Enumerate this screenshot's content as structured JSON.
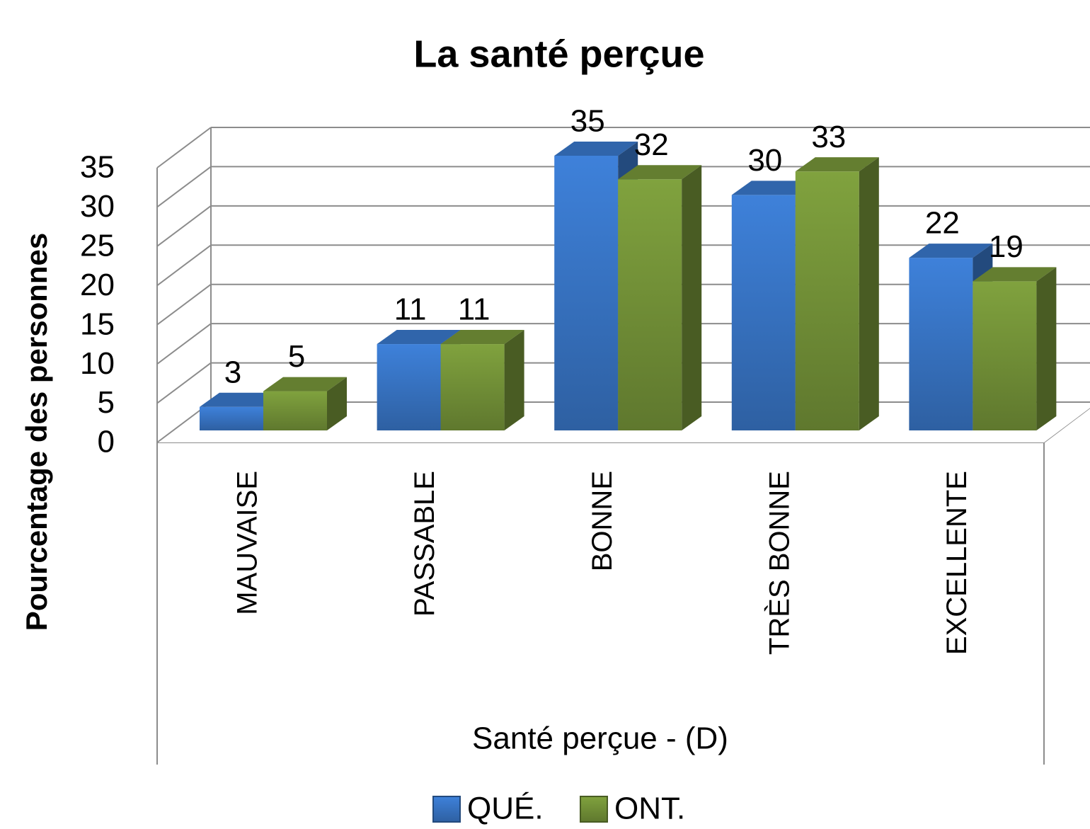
{
  "chart_data": {
    "type": "bar3d",
    "title": "La santé perçue",
    "y_label": "Pourcentage des personnes",
    "x_label": "Santé perçue - (D)",
    "categories": [
      "MAUVAISE",
      "PASSABLE",
      "BONNE",
      "TRÈS BONNE",
      "EXCELLENTE"
    ],
    "series": [
      {
        "name": "QUÉ.",
        "color": "#3b7bd0",
        "values": [
          3,
          11,
          35,
          30,
          22
        ]
      },
      {
        "name": "ONT.",
        "color": "#7a9a3b",
        "values": [
          5,
          11,
          32,
          33,
          19
        ]
      }
    ],
    "ylim": [
      0,
      35
    ],
    "yticks": [
      0,
      5,
      10,
      15,
      20,
      25,
      30,
      35
    ],
    "grid": true
  }
}
